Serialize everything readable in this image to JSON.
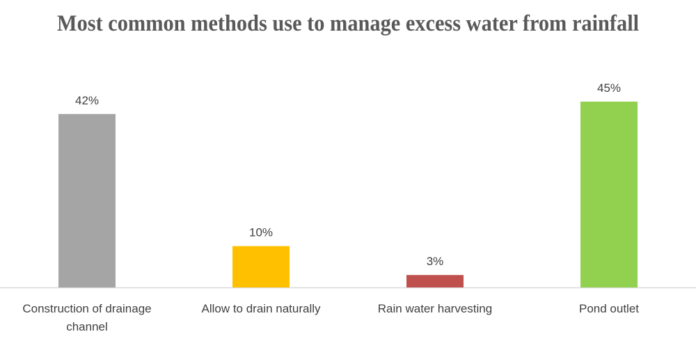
{
  "chart_data": {
    "type": "bar",
    "title": "Most common methods use to manage excess water from rainfall",
    "categories": [
      "Construction of drainage channel",
      "Allow to drain naturally",
      "Rain water harvesting",
      "Pond outlet"
    ],
    "category_lines": [
      [
        "Construction of drainage",
        "channel"
      ],
      [
        "Allow to drain naturally"
      ],
      [
        "Rain water harvesting"
      ],
      [
        "Pond outlet"
      ]
    ],
    "values": [
      42,
      10,
      3,
      45
    ],
    "value_labels": [
      "42%",
      "10%",
      "3%",
      "45%"
    ],
    "colors": [
      "#a5a5a5",
      "#ffc000",
      "#c0504d",
      "#92d050"
    ],
    "xlabel": "",
    "ylabel": "",
    "ylim": [
      0,
      45
    ],
    "grid": false,
    "legend": "none"
  }
}
